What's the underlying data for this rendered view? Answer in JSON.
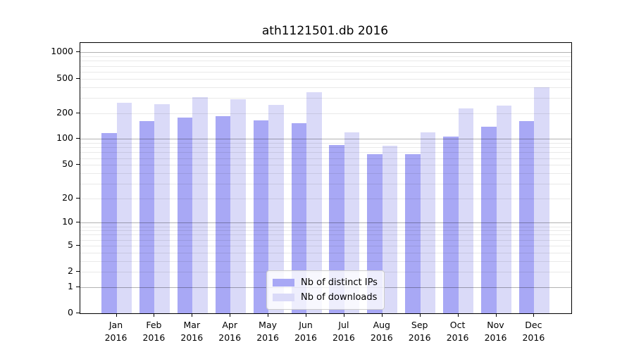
{
  "chart_data": {
    "type": "bar",
    "title": "ath1121501.db 2016",
    "categories": [
      "Jan 2016",
      "Feb 2016",
      "Mar 2016",
      "Apr 2016",
      "May 2016",
      "Jun 2016",
      "Jul 2016",
      "Aug 2016",
      "Sep 2016",
      "Oct 2016",
      "Nov 2016",
      "Dec 2016"
    ],
    "series": [
      {
        "name": "Nb of distinct IPs",
        "color": "#a8a8f5",
        "values": [
          117,
          163,
          178,
          185,
          166,
          153,
          86,
          67,
          67,
          107,
          140,
          163
        ]
      },
      {
        "name": "Nb of downloads",
        "color": "#dadaf8",
        "values": [
          264,
          255,
          304,
          286,
          250,
          351,
          119,
          83,
          119,
          226,
          245,
          396
        ]
      }
    ],
    "xlabel": "",
    "ylabel": "",
    "yscale": "log1p",
    "yticks": [
      0,
      1,
      2,
      5,
      10,
      20,
      50,
      100,
      200,
      500,
      1000
    ],
    "ylim": [
      0,
      1280
    ],
    "grid": true,
    "legend_position": "lower center",
    "colors": {
      "major_grid": "#b3b3b3",
      "minor_grid": "#e8e8e8",
      "spine": "#000000"
    }
  }
}
